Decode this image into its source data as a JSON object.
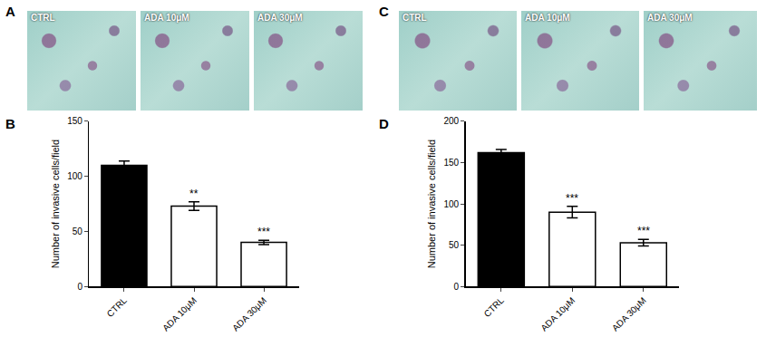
{
  "image_panels": [
    {
      "panel": "A",
      "captions": [
        "CTRL",
        "ADA 10μM",
        "ADA 30μM"
      ]
    },
    {
      "panel": "C",
      "captions": [
        "CTRL",
        "ADA 10μM",
        "ADA 30μM"
      ]
    }
  ],
  "chart_panels": [
    "B",
    "D"
  ],
  "chart_data": [
    {
      "type": "bar",
      "y_label": "Number of invasive cells/field",
      "categories": [
        "CTRL",
        "ADA 10μM",
        "ADA 30μM"
      ],
      "values": [
        110,
        73,
        40
      ],
      "errors": [
        4,
        4,
        2
      ],
      "colors": [
        "#000000",
        "#ffffff",
        "#ffffff"
      ],
      "ylim": [
        0,
        150
      ],
      "yticks": [
        0,
        50,
        100,
        150
      ],
      "grid": false,
      "annotations": [
        {
          "category": "ADA 10μM",
          "text": "**"
        },
        {
          "category": "ADA 30μM",
          "text": "***"
        }
      ]
    },
    {
      "type": "bar",
      "y_label": "Number of invasive cells/field",
      "categories": [
        "CTRL",
        "ADA 10μM",
        "ADA 30μM"
      ],
      "values": [
        162,
        90,
        53
      ],
      "errors": [
        4,
        7,
        4
      ],
      "colors": [
        "#000000",
        "#ffffff",
        "#ffffff"
      ],
      "ylim": [
        0,
        200
      ],
      "yticks": [
        0,
        50,
        100,
        150,
        200
      ],
      "grid": false,
      "annotations": [
        {
          "category": "ADA 10μM",
          "text": "***"
        },
        {
          "category": "ADA 30μM",
          "text": "***"
        }
      ]
    }
  ]
}
